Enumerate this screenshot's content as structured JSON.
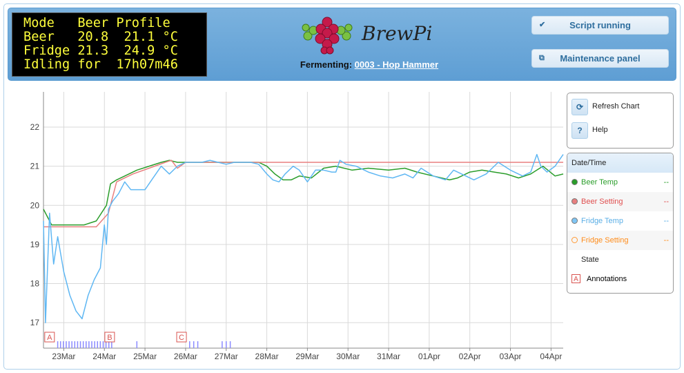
{
  "lcd": {
    "lines": [
      "Mode   Beer Profile",
      "Beer   20.8  21.1 °C",
      "Fridge 21.3  24.9 °C",
      "Idling for  17h07m46"
    ]
  },
  "brand": {
    "name": "BrewPi"
  },
  "fermenting": {
    "label": "Fermenting:",
    "beer": "0003 - Hop Hammer"
  },
  "buttons": {
    "script": "Script running",
    "maintenance": "Maintenance panel"
  },
  "tools": {
    "refresh": "Refresh Chart",
    "help": "Help",
    "help_glyph": "?"
  },
  "legend": {
    "header": "Date/Time",
    "rows": [
      {
        "name": "Beer Temp",
        "value": "--",
        "color": "#2a9d2a",
        "text_color": "#2a9d2a",
        "bg": "#ffffff"
      },
      {
        "name": "Beer Setting",
        "value": "--",
        "color": "#e87f7f",
        "text_color": "#e05050",
        "bg": "#f6f6f6"
      },
      {
        "name": "Fridge Temp",
        "value": "--",
        "color": "#80c6f5",
        "text_color": "#5aaee6",
        "bg": "#ffffff"
      },
      {
        "name": "Fridge Setting",
        "value": "--",
        "color": "#ff9933",
        "text_color": "#ff8c1a",
        "bg": "#f6f6f6"
      },
      {
        "name": "State",
        "value": "",
        "color": "",
        "text_color": "#222222",
        "bg": "#ffffff"
      }
    ],
    "annotations_label": "Annotations",
    "annotations_glyph": "A"
  },
  "chart_data": {
    "type": "line",
    "x_ticks": [
      "23Mar",
      "24Mar",
      "25Mar",
      "26Mar",
      "27Mar",
      "28Mar",
      "29Mar",
      "30Mar",
      "31Mar",
      "01Apr",
      "02Apr",
      "03Apr",
      "04Apr"
    ],
    "y_ticks": [
      17,
      18,
      19,
      20,
      21,
      22
    ],
    "ylim": [
      16.35,
      22.9
    ],
    "xlim": [
      0.0,
      12.8
    ],
    "grid": true,
    "annotations": [
      {
        "label": "A",
        "x": 0.15
      },
      {
        "label": "B",
        "x": 1.63
      },
      {
        "label": "C",
        "x": 3.4
      }
    ],
    "series": [
      {
        "name": "Beer Temp",
        "color": "#2a9d2a",
        "x": [
          0,
          0.2,
          0.5,
          1,
          1.3,
          1.55,
          1.65,
          1.8,
          2,
          2.3,
          2.6,
          2.9,
          3.1,
          3.3,
          3.5,
          3.8,
          4.2,
          4.6,
          5,
          5.3,
          5.5,
          5.7,
          5.9,
          6.1,
          6.3,
          6.6,
          6.9,
          7.2,
          7.6,
          8,
          8.5,
          8.9,
          9.2,
          9.6,
          10,
          10.2,
          10.5,
          10.8,
          11.1,
          11.4,
          11.7,
          12,
          12.3,
          12.6,
          12.8
        ],
        "y": [
          19.9,
          19.5,
          19.5,
          19.5,
          19.6,
          20.0,
          20.55,
          20.65,
          20.75,
          20.9,
          21.0,
          21.1,
          21.15,
          21.1,
          21.1,
          21.1,
          21.1,
          21.1,
          21.1,
          21.1,
          21.0,
          20.8,
          20.65,
          20.65,
          20.75,
          20.7,
          20.95,
          21.0,
          20.9,
          20.95,
          20.9,
          20.95,
          20.85,
          20.75,
          20.65,
          20.7,
          20.85,
          20.9,
          20.85,
          20.8,
          20.7,
          20.8,
          21.0,
          20.75,
          20.8
        ]
      },
      {
        "name": "Beer Setting",
        "color": "#e87f7f",
        "x": [
          0,
          0.5,
          1,
          1.3,
          1.6,
          1.8,
          2.2,
          2.6,
          3.0,
          3.15,
          3.3,
          3.5,
          4,
          5,
          6,
          7,
          8,
          9,
          10,
          11,
          12,
          12.8
        ],
        "y": [
          19.45,
          19.45,
          19.45,
          19.45,
          19.8,
          20.6,
          20.8,
          20.95,
          21.1,
          21.15,
          20.95,
          21.1,
          21.1,
          21.1,
          21.1,
          21.1,
          21.1,
          21.1,
          21.1,
          21.1,
          21.1,
          21.1
        ],
        "plain": true
      },
      {
        "name": "Fridge Temp",
        "color": "#5fb7f3",
        "x": [
          0,
          0.05,
          0.15,
          0.25,
          0.35,
          0.5,
          0.65,
          0.8,
          0.95,
          1.1,
          1.25,
          1.4,
          1.5,
          1.55,
          1.6,
          1.7,
          1.85,
          2.0,
          2.15,
          2.3,
          2.5,
          2.7,
          2.9,
          3.1,
          3.3,
          3.5,
          3.7,
          3.9,
          4.1,
          4.3,
          4.5,
          4.7,
          4.9,
          5.1,
          5.3,
          5.5,
          5.65,
          5.8,
          5.95,
          6.05,
          6.15,
          6.3,
          6.5,
          6.7,
          6.9,
          7.1,
          7.2,
          7.3,
          7.45,
          7.7,
          8,
          8.3,
          8.6,
          8.9,
          9.1,
          9.3,
          9.6,
          9.9,
          10.1,
          10.3,
          10.6,
          10.9,
          11.2,
          11.5,
          11.8,
          12.0,
          12.15,
          12.25,
          12.4,
          12.6,
          12.8
        ],
        "y": [
          19.6,
          17.0,
          19.8,
          18.5,
          19.2,
          18.3,
          17.7,
          17.3,
          17.1,
          17.7,
          18.1,
          18.4,
          19.5,
          19.0,
          19.9,
          20.1,
          20.3,
          20.6,
          20.4,
          20.4,
          20.4,
          20.7,
          21.0,
          20.8,
          21.0,
          21.1,
          21.1,
          21.1,
          21.15,
          21.1,
          21.05,
          21.1,
          21.1,
          21.1,
          21.05,
          20.8,
          20.65,
          20.6,
          20.8,
          20.9,
          21.0,
          20.9,
          20.6,
          20.9,
          20.9,
          20.85,
          20.85,
          21.15,
          21.05,
          21.0,
          20.85,
          20.75,
          20.7,
          20.8,
          20.7,
          20.95,
          20.75,
          20.65,
          20.9,
          20.8,
          20.65,
          20.8,
          21.1,
          20.9,
          20.75,
          20.85,
          21.3,
          21.0,
          20.85,
          21.0,
          21.3
        ]
      },
      {
        "name": "Fridge Setting",
        "color": "#ff9933",
        "x": [],
        "y": []
      }
    ]
  }
}
